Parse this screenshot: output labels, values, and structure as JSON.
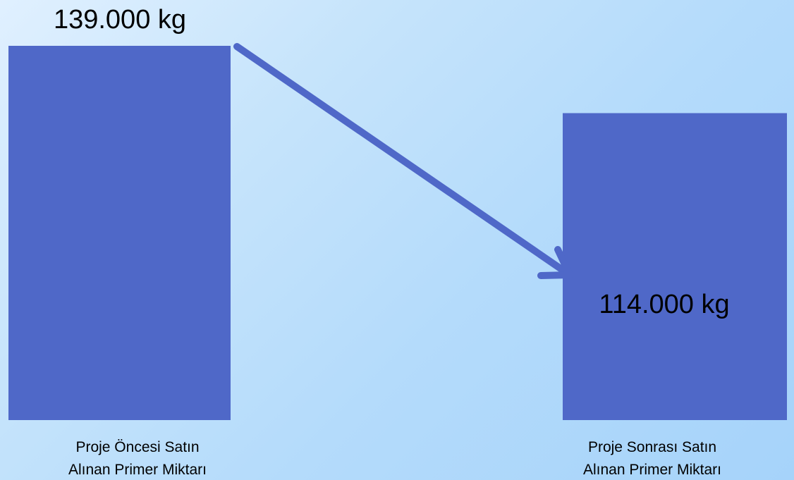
{
  "chart_data": {
    "type": "bar",
    "categories": [
      [
        "Proje Öncesi Satın",
        "Alınan Primer Miktarı"
      ],
      [
        "Proje Sonrası Satın",
        "Alınan Primer Miktarı"
      ]
    ],
    "values": [
      139000,
      114000
    ],
    "value_labels": [
      "139.000 kg",
      "114.000 kg"
    ],
    "unit": "kg",
    "colors": {
      "bar": "#4f68c8",
      "arrow": "#4f68c8"
    },
    "annotations": [
      {
        "type": "arrow",
        "from_category": 0,
        "to_category": 1,
        "direction": "decrease"
      }
    ]
  }
}
